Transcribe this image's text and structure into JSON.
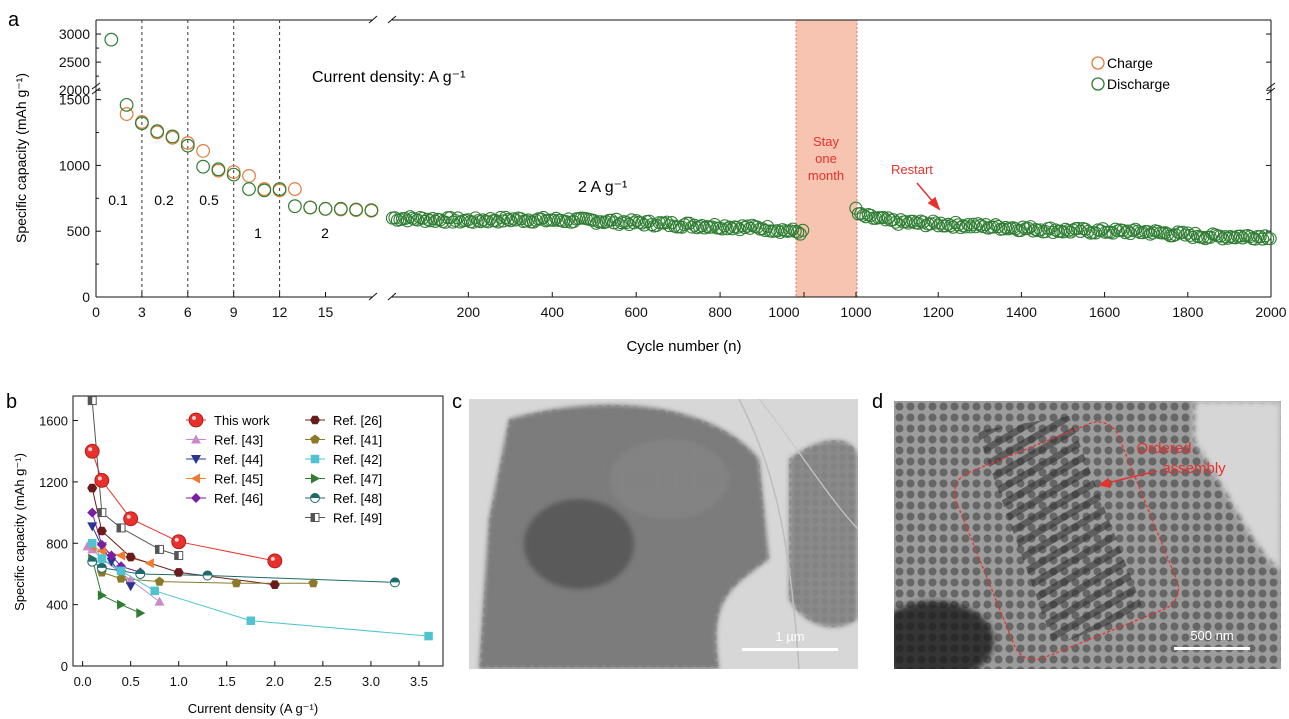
{
  "panel_labels": {
    "a": "a",
    "b": "b",
    "c": "c",
    "d": "d"
  },
  "chart_data": [
    {
      "type": "scatter",
      "panel": "a",
      "xlabel": "Cycle number (n)",
      "ylabel": "Specific capacity (mAh g⁻¹)",
      "y_break": {
        "lower": [
          0,
          1550
        ],
        "upper": [
          1950,
          3250
        ]
      },
      "x_break": "axis broken after cycle 18 and at 1000 (rest)",
      "yticks": [
        0,
        500,
        1000,
        1500,
        2000,
        2500,
        3000
      ],
      "xticks_left": [
        0,
        3,
        6,
        9,
        12,
        15
      ],
      "xticks_mid": [
        200,
        400,
        600,
        800,
        1000
      ],
      "xticks_right": [
        1000,
        1200,
        1400,
        1600,
        1800,
        2000
      ],
      "legend": {
        "position": "top-right",
        "entries": [
          {
            "name": "Charge",
            "color": "#e07b39",
            "marker": "open-circle"
          },
          {
            "name": "Discharge",
            "color": "#2e7d32",
            "marker": "open-circle"
          }
        ]
      },
      "texts": {
        "density_note": "Current density: A g⁻¹",
        "rate_labels": [
          "0.1",
          "0.2",
          "0.5",
          "1",
          "2"
        ],
        "long_rate": "2 A g⁻¹",
        "pause_lines": [
          "Stay",
          "one",
          "month"
        ],
        "restart": "Restart"
      },
      "rate_dividers": [
        3,
        6,
        9,
        12
      ],
      "colors": {
        "charge": "#e07b39",
        "discharge": "#2e7d32",
        "pause_fill": "#f6c4b0",
        "pause_edge": "#e07b6a",
        "annotation": "#e8312c"
      },
      "series": [
        {
          "name": "Charge",
          "x": [
            2,
            3,
            4,
            5,
            6,
            7,
            8,
            9,
            10,
            11,
            12,
            13,
            14,
            15,
            16,
            17,
            18
          ],
          "y": [
            1390,
            1330,
            1250,
            1210,
            1170,
            1110,
            960,
            950,
            920,
            820,
            810,
            820,
            680,
            670,
            665,
            660,
            655
          ]
        },
        {
          "name": "Discharge",
          "x": [
            1,
            2,
            3,
            4,
            5,
            6,
            7,
            8,
            9,
            10,
            11,
            12,
            13,
            14,
            15,
            16,
            17,
            18
          ],
          "y": [
            2900,
            1460,
            1320,
            1260,
            1220,
            1150,
            990,
            970,
            930,
            820,
            810,
            820,
            690,
            680,
            670,
            670,
            665,
            660
          ]
        }
      ],
      "long_cycling": {
        "segment1": {
          "x_range": [
            19,
            1000
          ],
          "trend": [
            [
              19,
              600
            ],
            [
              200,
              580
            ],
            [
              300,
              590
            ],
            [
              500,
              580
            ],
            [
              700,
              550
            ],
            [
              900,
              525
            ],
            [
              1000,
              490
            ]
          ]
        },
        "segment2": {
          "x_range": [
            1000,
            2000
          ],
          "trend": [
            [
              1000,
              680
            ],
            [
              1010,
              620
            ],
            [
              1100,
              570
            ],
            [
              1300,
              540
            ],
            [
              1500,
              505
            ],
            [
              1700,
              495
            ],
            [
              1850,
              460
            ],
            [
              2000,
              460
            ]
          ]
        }
      }
    },
    {
      "type": "line",
      "panel": "b",
      "xlabel": "Current density (A g⁻¹)",
      "ylabel": "Specific capacity (mAh g⁻¹)",
      "xlim": [
        -0.1,
        3.75
      ],
      "ylim": [
        0,
        1760
      ],
      "xticks": [
        0.0,
        0.5,
        1.0,
        1.5,
        2.0,
        2.5,
        3.0,
        3.5
      ],
      "yticks": [
        0,
        400,
        800,
        1200,
        1600
      ],
      "legend_position": "top-right",
      "series": [
        {
          "name": "This work",
          "color": "#e8312c",
          "marker": "sphere",
          "x": [
            0.1,
            0.2,
            0.5,
            1.0,
            2.0
          ],
          "y": [
            1400,
            1210,
            960,
            810,
            685
          ]
        },
        {
          "name": "Ref. [43]",
          "color": "#c98ac9",
          "marker": "tri-up",
          "x": [
            0.05,
            0.1,
            0.2,
            0.5,
            0.8
          ],
          "y": [
            780,
            760,
            700,
            560,
            420
          ]
        },
        {
          "name": "Ref. [44]",
          "color": "#283593",
          "marker": "tri-down",
          "x": [
            0.1,
            0.2,
            0.3,
            0.4,
            0.5
          ],
          "y": [
            910,
            780,
            680,
            600,
            520
          ]
        },
        {
          "name": "Ref. [45]",
          "color": "#ef7c30",
          "marker": "tri-left",
          "x": [
            0.1,
            0.2,
            0.4,
            0.7
          ],
          "y": [
            780,
            750,
            720,
            670
          ]
        },
        {
          "name": "Ref. [46]",
          "color": "#7b1fa2",
          "marker": "diamond",
          "x": [
            0.1,
            0.2,
            0.3,
            0.4,
            0.6
          ],
          "y": [
            1000,
            790,
            720,
            650,
            610
          ]
        },
        {
          "name": "Ref. [26]",
          "color": "#6a1b1b",
          "marker": "hexagon",
          "x": [
            0.1,
            0.2,
            0.5,
            1.0,
            2.0
          ],
          "y": [
            1160,
            880,
            710,
            610,
            530
          ]
        },
        {
          "name": "Ref. [41]",
          "color": "#8a7a2a",
          "marker": "pentagon",
          "x": [
            0.2,
            0.4,
            0.8,
            1.6,
            2.4
          ],
          "y": [
            610,
            570,
            550,
            540,
            540
          ]
        },
        {
          "name": "Ref. [42]",
          "color": "#4fc4d0",
          "marker": "square",
          "x": [
            0.1,
            0.2,
            0.4,
            0.75,
            1.75,
            3.6
          ],
          "y": [
            800,
            700,
            620,
            490,
            295,
            195
          ]
        },
        {
          "name": "Ref. [47]",
          "color": "#2e7d32",
          "marker": "tri-right",
          "x": [
            0.1,
            0.2,
            0.4,
            0.6
          ],
          "y": [
            700,
            460,
            400,
            345
          ]
        },
        {
          "name": "Ref. [48]",
          "color": "#1f6a6a",
          "marker": "half-circle",
          "x": [
            0.1,
            0.2,
            0.6,
            1.3,
            3.25
          ],
          "y": [
            680,
            640,
            600,
            590,
            545
          ]
        },
        {
          "name": "Ref. [49]",
          "color": "#555555",
          "marker": "half-square",
          "x": [
            0.1,
            0.2,
            0.4,
            0.8,
            1.0
          ],
          "y": [
            1730,
            1000,
            900,
            760,
            720
          ]
        }
      ]
    }
  ],
  "images": {
    "c": {
      "scale_bar": "1 µm"
    },
    "d": {
      "scale_bar": "500 nm",
      "annotation": "Ordered assembly"
    }
  }
}
